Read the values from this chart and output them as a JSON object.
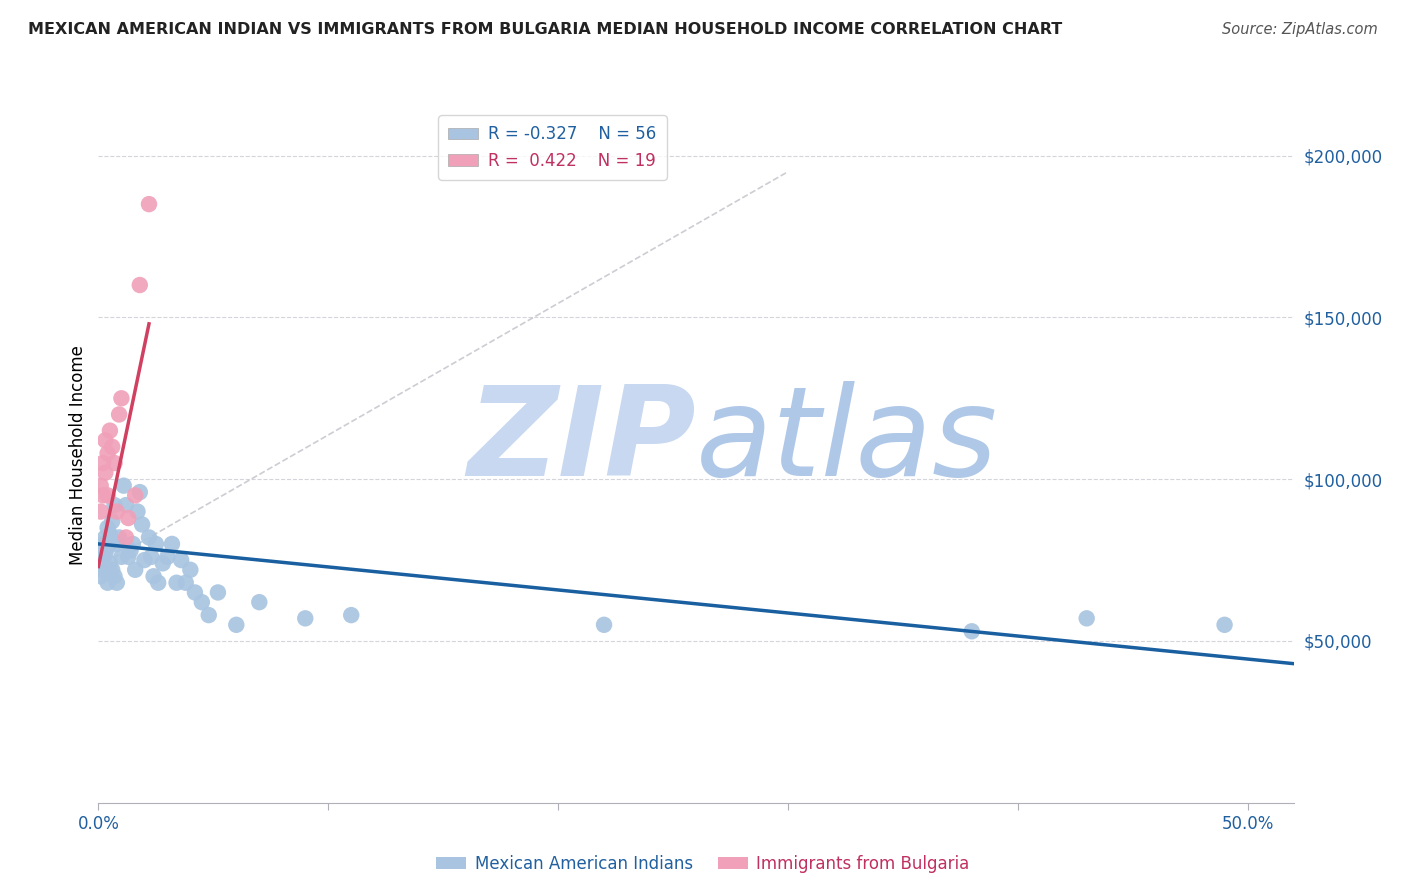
{
  "title": "MEXICAN AMERICAN INDIAN VS IMMIGRANTS FROM BULGARIA MEDIAN HOUSEHOLD INCOME CORRELATION CHART",
  "source": "Source: ZipAtlas.com",
  "ylabel": "Median Household Income",
  "legend_blue_R": "-0.327",
  "legend_blue_N": "56",
  "legend_pink_R": "0.422",
  "legend_pink_N": "19",
  "blue_color": "#a8c4e0",
  "pink_color": "#f0a0b8",
  "blue_line_color": "#1a5fa0",
  "pink_line_color": "#d04060",
  "dashed_line_color": "#c0c0c8",
  "watermark_zip_color": "#c8d8f0",
  "watermark_atlas_color": "#b0c8e8",
  "xlim": [
    0.0,
    0.52
  ],
  "ylim": [
    0,
    215000
  ],
  "blue_scatter_x": [
    0.001,
    0.001,
    0.001,
    0.002,
    0.002,
    0.002,
    0.003,
    0.003,
    0.003,
    0.004,
    0.004,
    0.004,
    0.005,
    0.005,
    0.006,
    0.006,
    0.007,
    0.007,
    0.008,
    0.008,
    0.009,
    0.01,
    0.011,
    0.012,
    0.013,
    0.014,
    0.015,
    0.016,
    0.017,
    0.018,
    0.019,
    0.02,
    0.022,
    0.023,
    0.024,
    0.025,
    0.026,
    0.028,
    0.03,
    0.032,
    0.034,
    0.036,
    0.038,
    0.04,
    0.042,
    0.045,
    0.048,
    0.052,
    0.06,
    0.07,
    0.09,
    0.11,
    0.22,
    0.38,
    0.43,
    0.49
  ],
  "blue_scatter_y": [
    78000,
    74000,
    70000,
    80000,
    76000,
    72000,
    82000,
    77000,
    73000,
    85000,
    79000,
    68000,
    83000,
    74000,
    87000,
    72000,
    92000,
    70000,
    80000,
    68000,
    82000,
    76000,
    98000,
    92000,
    76000,
    78000,
    80000,
    72000,
    90000,
    96000,
    86000,
    75000,
    82000,
    76000,
    70000,
    80000,
    68000,
    74000,
    76000,
    80000,
    68000,
    75000,
    68000,
    72000,
    65000,
    62000,
    58000,
    65000,
    55000,
    62000,
    57000,
    58000,
    55000,
    53000,
    57000,
    55000
  ],
  "pink_scatter_x": [
    0.001,
    0.001,
    0.002,
    0.002,
    0.003,
    0.003,
    0.004,
    0.004,
    0.005,
    0.006,
    0.007,
    0.008,
    0.009,
    0.01,
    0.012,
    0.013,
    0.016,
    0.018,
    0.022
  ],
  "pink_scatter_y": [
    98000,
    90000,
    105000,
    95000,
    112000,
    102000,
    108000,
    95000,
    115000,
    110000,
    105000,
    90000,
    120000,
    125000,
    82000,
    88000,
    95000,
    160000,
    185000
  ],
  "blue_trend_x": [
    0.0,
    0.52
  ],
  "blue_trend_y": [
    80000,
    43000
  ],
  "pink_trend_x": [
    0.0,
    0.022
  ],
  "pink_trend_y": [
    73000,
    148000
  ],
  "dashed_trend_x": [
    0.0,
    0.3
  ],
  "dashed_trend_y": [
    73000,
    195000
  ]
}
